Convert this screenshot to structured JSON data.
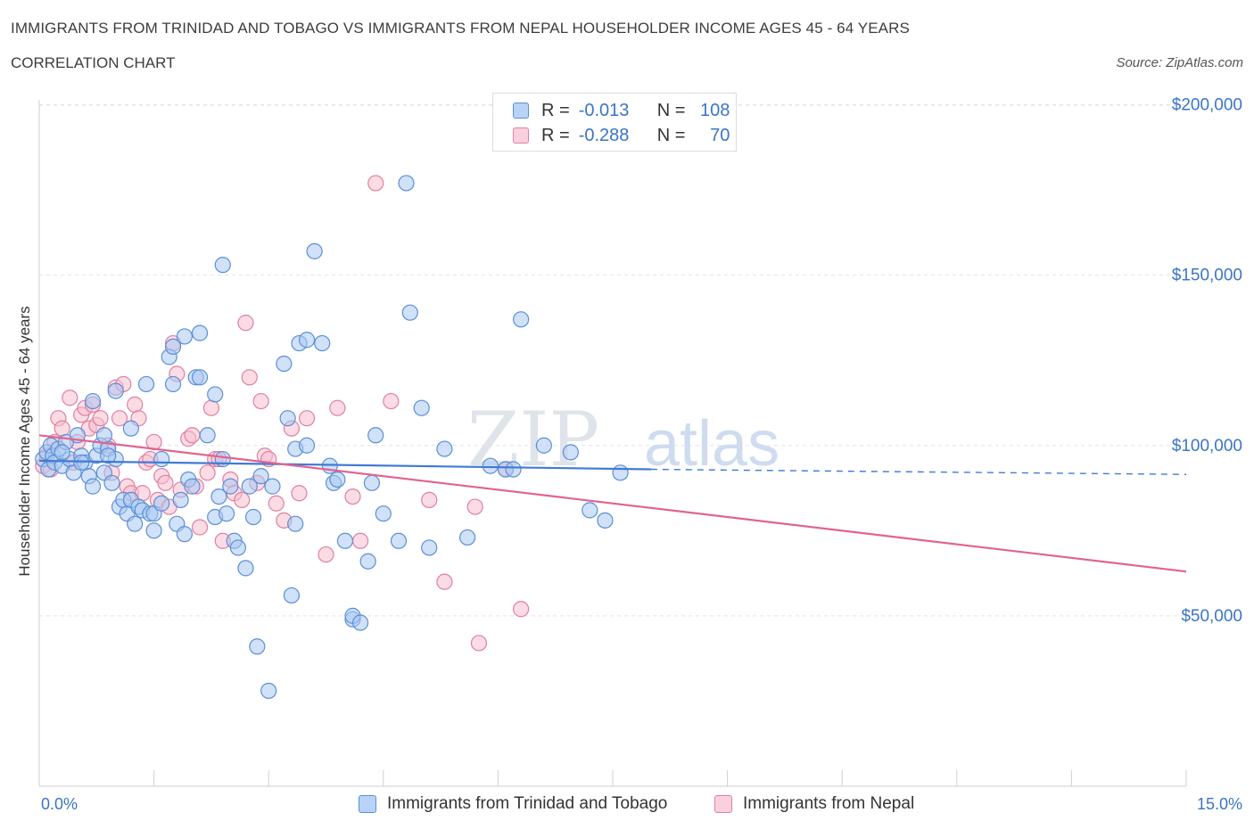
{
  "header": {
    "title": "IMMIGRANTS FROM TRINIDAD AND TOBAGO VS IMMIGRANTS FROM NEPAL HOUSEHOLDER INCOME AGES 45 - 64 YEARS",
    "subtitle": "CORRELATION CHART",
    "source": "Source: ZipAtlas.com"
  },
  "watermark": {
    "part1": "ZIP",
    "part2": "atlas"
  },
  "legend": {
    "rows": [
      {
        "r_label": "R =",
        "r_value": "-0.013",
        "n_label": "N =",
        "n_value": "108"
      },
      {
        "r_label": "R =",
        "r_value": "-0.288",
        "n_label": "N =",
        "n_value": "70"
      }
    ]
  },
  "colors": {
    "blue_fill": "#a9c8f2",
    "blue_stroke": "#5b8fd6",
    "blue_line": "#3f7bd6",
    "pink_fill": "#f7bfd0",
    "pink_stroke": "#e07fa0",
    "pink_line": "#e0648f",
    "axis_label": "#3a74c8"
  },
  "chart_data": {
    "type": "scatter",
    "title": "IMMIGRANTS FROM TRINIDAD AND TOBAGO VS IMMIGRANTS FROM NEPAL HOUSEHOLDER INCOME AGES 45 - 64 YEARS",
    "subtitle": "CORRELATION CHART",
    "xlabel": "",
    "ylabel": "Householder Income Ages 45 - 64 years",
    "xlim": [
      0,
      15
    ],
    "ylim": [
      0,
      205000
    ],
    "x_tick_labels": [
      "0.0%",
      "15.0%"
    ],
    "y_ticks": [
      50000,
      100000,
      150000,
      200000
    ],
    "y_tick_labels": [
      "$50,000",
      "$100,000",
      "$150,000",
      "$200,000"
    ],
    "grid": true,
    "series": [
      {
        "name": "Immigrants from Trinidad and Tobago",
        "color": "blue",
        "R": -0.013,
        "N": 108,
        "trend": {
          "x0": 0.0,
          "y0": 95500,
          "x1": 8.0,
          "y1": 93000,
          "dashed_to_x": 15.0,
          "dashed_y": 91500
        },
        "points": [
          [
            0.05,
            96000
          ],
          [
            0.1,
            98000
          ],
          [
            0.12,
            93000
          ],
          [
            0.15,
            100000
          ],
          [
            0.18,
            97000
          ],
          [
            0.2,
            95000
          ],
          [
            0.25,
            99000
          ],
          [
            0.3,
            94000
          ],
          [
            0.35,
            101000
          ],
          [
            0.4,
            96000
          ],
          [
            0.45,
            92000
          ],
          [
            0.5,
            103000
          ],
          [
            0.55,
            97000
          ],
          [
            0.6,
            95000
          ],
          [
            0.65,
            91000
          ],
          [
            0.7,
            113000
          ],
          [
            0.7,
            88000
          ],
          [
            0.75,
            97000
          ],
          [
            0.8,
            100000
          ],
          [
            0.85,
            92000
          ],
          [
            0.9,
            99000
          ],
          [
            0.95,
            89000
          ],
          [
            1.0,
            96000
          ],
          [
            0.85,
            103000
          ],
          [
            1.05,
            82000
          ],
          [
            1.1,
            84000
          ],
          [
            1.15,
            80000
          ],
          [
            1.0,
            116000
          ],
          [
            1.2,
            105000
          ],
          [
            1.2,
            84000
          ],
          [
            1.25,
            77000
          ],
          [
            1.3,
            82000
          ],
          [
            1.35,
            81000
          ],
          [
            1.4,
            118000
          ],
          [
            1.45,
            80000
          ],
          [
            1.5,
            80000
          ],
          [
            1.5,
            75000
          ],
          [
            1.6,
            83000
          ],
          [
            1.6,
            96000
          ],
          [
            1.7,
            126000
          ],
          [
            1.75,
            118000
          ],
          [
            1.75,
            129000
          ],
          [
            1.8,
            77000
          ],
          [
            1.85,
            84000
          ],
          [
            1.9,
            74000
          ],
          [
            1.9,
            132000
          ],
          [
            1.95,
            90000
          ],
          [
            2.0,
            88000
          ],
          [
            2.05,
            120000
          ],
          [
            2.1,
            120000
          ],
          [
            2.1,
            133000
          ],
          [
            2.2,
            103000
          ],
          [
            2.3,
            115000
          ],
          [
            2.3,
            79000
          ],
          [
            2.35,
            85000
          ],
          [
            2.4,
            96000
          ],
          [
            2.4,
            153000
          ],
          [
            2.45,
            80000
          ],
          [
            2.5,
            88000
          ],
          [
            2.55,
            72000
          ],
          [
            2.6,
            70000
          ],
          [
            2.7,
            64000
          ],
          [
            2.75,
            88000
          ],
          [
            2.8,
            79000
          ],
          [
            2.85,
            41000
          ],
          [
            2.9,
            91000
          ],
          [
            3.0,
            28000
          ],
          [
            3.05,
            88000
          ],
          [
            3.2,
            124000
          ],
          [
            3.25,
            108000
          ],
          [
            3.3,
            56000
          ],
          [
            3.35,
            77000
          ],
          [
            3.35,
            99000
          ],
          [
            3.4,
            130000
          ],
          [
            3.5,
            100000
          ],
          [
            3.5,
            131000
          ],
          [
            3.6,
            157000
          ],
          [
            3.7,
            130000
          ],
          [
            3.8,
            94000
          ],
          [
            3.85,
            89000
          ],
          [
            3.9,
            90000
          ],
          [
            4.0,
            72000
          ],
          [
            4.1,
            49000
          ],
          [
            4.1,
            50000
          ],
          [
            4.2,
            48000
          ],
          [
            4.3,
            66000
          ],
          [
            4.35,
            89000
          ],
          [
            4.4,
            103000
          ],
          [
            4.5,
            80000
          ],
          [
            4.7,
            72000
          ],
          [
            4.8,
            177000
          ],
          [
            4.85,
            139000
          ],
          [
            5.0,
            111000
          ],
          [
            5.1,
            70000
          ],
          [
            5.3,
            99000
          ],
          [
            5.6,
            73000
          ],
          [
            5.9,
            94000
          ],
          [
            6.1,
            93000
          ],
          [
            6.2,
            93000
          ],
          [
            6.3,
            137000
          ],
          [
            6.6,
            100000
          ],
          [
            6.95,
            98000
          ],
          [
            7.2,
            81000
          ],
          [
            7.4,
            78000
          ],
          [
            7.6,
            92000
          ],
          [
            0.3,
            98000
          ],
          [
            0.55,
            95000
          ],
          [
            0.9,
            97000
          ]
        ]
      },
      {
        "name": "Immigrants from Nepal",
        "color": "pink",
        "R": -0.288,
        "N": 70,
        "trend": {
          "x0": 0.0,
          "y0": 103000,
          "x1": 15.0,
          "y1": 63000
        },
        "points": [
          [
            0.05,
            94000
          ],
          [
            0.1,
            97000
          ],
          [
            0.15,
            93000
          ],
          [
            0.2,
            101000
          ],
          [
            0.25,
            108000
          ],
          [
            0.3,
            105000
          ],
          [
            0.4,
            114000
          ],
          [
            0.45,
            95000
          ],
          [
            0.5,
            101000
          ],
          [
            0.55,
            109000
          ],
          [
            0.6,
            111000
          ],
          [
            0.65,
            105000
          ],
          [
            0.7,
            112000
          ],
          [
            0.75,
            106000
          ],
          [
            0.8,
            108000
          ],
          [
            0.9,
            100000
          ],
          [
            0.95,
            92000
          ],
          [
            1.0,
            117000
          ],
          [
            1.05,
            108000
          ],
          [
            1.1,
            118000
          ],
          [
            1.15,
            88000
          ],
          [
            1.2,
            86000
          ],
          [
            1.25,
            112000
          ],
          [
            1.3,
            108000
          ],
          [
            1.35,
            86000
          ],
          [
            1.4,
            95000
          ],
          [
            1.45,
            96000
          ],
          [
            1.5,
            101000
          ],
          [
            1.55,
            84000
          ],
          [
            1.6,
            91000
          ],
          [
            1.65,
            89000
          ],
          [
            1.7,
            82000
          ],
          [
            1.75,
            130000
          ],
          [
            1.8,
            121000
          ],
          [
            1.85,
            87000
          ],
          [
            1.95,
            102000
          ],
          [
            2.0,
            103000
          ],
          [
            2.05,
            88000
          ],
          [
            2.1,
            76000
          ],
          [
            2.2,
            92000
          ],
          [
            2.25,
            111000
          ],
          [
            2.3,
            96000
          ],
          [
            2.35,
            96000
          ],
          [
            2.4,
            72000
          ],
          [
            2.5,
            90000
          ],
          [
            2.55,
            86000
          ],
          [
            2.65,
            84000
          ],
          [
            2.7,
            136000
          ],
          [
            2.75,
            120000
          ],
          [
            2.85,
            89000
          ],
          [
            2.9,
            113000
          ],
          [
            2.95,
            97000
          ],
          [
            3.0,
            96000
          ],
          [
            3.1,
            83000
          ],
          [
            3.2,
            78000
          ],
          [
            3.3,
            105000
          ],
          [
            3.4,
            86000
          ],
          [
            3.5,
            108000
          ],
          [
            3.75,
            68000
          ],
          [
            3.9,
            111000
          ],
          [
            4.1,
            85000
          ],
          [
            4.2,
            72000
          ],
          [
            4.4,
            177000
          ],
          [
            4.6,
            113000
          ],
          [
            5.1,
            84000
          ],
          [
            5.3,
            60000
          ],
          [
            5.7,
            82000
          ],
          [
            5.75,
            42000
          ],
          [
            6.1,
            93000
          ],
          [
            6.3,
            52000
          ]
        ]
      }
    ]
  }
}
